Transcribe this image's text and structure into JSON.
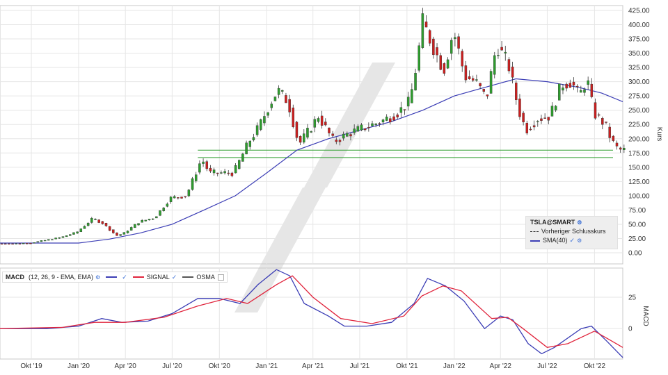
{
  "chart_data": [
    {
      "type": "candlestick",
      "title": "",
      "ylabel": "Kurs",
      "ylim": [
        0,
        425
      ],
      "y_ticks": [
        "425.00",
        "400.00",
        "375.00",
        "350.00",
        "325.00",
        "300.00",
        "275.00",
        "250.00",
        "225.00",
        "200.00",
        "175.00",
        "150.00",
        "125.00",
        "100.00",
        "75.00",
        "50.00",
        "25.00",
        "0.00"
      ],
      "x_ticks": [
        "Okt '19",
        "Jan '20",
        "Apr '20",
        "Jul '20",
        "Okt '20",
        "Jan '21",
        "Apr '21",
        "Jul '21",
        "Okt '21",
        "Jan '22",
        "Apr '22",
        "Jul '22",
        "Okt '22"
      ],
      "x_tick_dates": [
        "2019-10-01",
        "2020-01-01",
        "2020-04-01",
        "2020-07-01",
        "2020-10-01",
        "2021-01-01",
        "2021-04-01",
        "2021-07-01",
        "2021-10-01",
        "2022-01-01",
        "2022-04-01",
        "2022-07-01",
        "2022-10-01"
      ],
      "x_range": [
        "2019-08-01",
        "2022-11-25"
      ],
      "series": [
        {
          "name": "TSLA@SMART",
          "points": [
            {
              "date": "2019-08-01",
              "close": 16
            },
            {
              "date": "2019-09-01",
              "close": 16
            },
            {
              "date": "2019-10-01",
              "close": 17
            },
            {
              "date": "2019-11-01",
              "close": 22
            },
            {
              "date": "2019-12-01",
              "close": 27
            },
            {
              "date": "2020-01-01",
              "close": 36
            },
            {
              "date": "2020-02-01",
              "close": 60
            },
            {
              "date": "2020-02-20",
              "close": 52
            },
            {
              "date": "2020-03-18",
              "close": 30
            },
            {
              "date": "2020-04-01",
              "close": 34
            },
            {
              "date": "2020-05-01",
              "close": 54
            },
            {
              "date": "2020-06-01",
              "close": 62
            },
            {
              "date": "2020-07-01",
              "close": 96
            },
            {
              "date": "2020-08-01",
              "close": 100
            },
            {
              "date": "2020-08-31",
              "close": 165
            },
            {
              "date": "2020-09-15",
              "close": 140
            },
            {
              "date": "2020-10-01",
              "close": 140
            },
            {
              "date": "2020-11-01",
              "close": 140
            },
            {
              "date": "2020-12-01",
              "close": 195
            },
            {
              "date": "2020-12-20",
              "close": 220
            },
            {
              "date": "2021-01-10",
              "close": 260
            },
            {
              "date": "2021-01-26",
              "close": 285
            },
            {
              "date": "2021-02-15",
              "close": 265
            },
            {
              "date": "2021-03-08",
              "close": 190
            },
            {
              "date": "2021-04-01",
              "close": 220
            },
            {
              "date": "2021-04-15",
              "close": 240
            },
            {
              "date": "2021-05-15",
              "close": 195
            },
            {
              "date": "2021-06-15",
              "close": 210
            },
            {
              "date": "2021-07-15",
              "close": 220
            },
            {
              "date": "2021-08-15",
              "close": 230
            },
            {
              "date": "2021-09-15",
              "close": 245
            },
            {
              "date": "2021-10-10",
              "close": 265
            },
            {
              "date": "2021-10-25",
              "close": 340
            },
            {
              "date": "2021-11-04",
              "close": 405
            },
            {
              "date": "2021-11-25",
              "close": 360
            },
            {
              "date": "2021-12-15",
              "close": 320
            },
            {
              "date": "2022-01-03",
              "close": 390
            },
            {
              "date": "2022-01-25",
              "close": 310
            },
            {
              "date": "2022-02-15",
              "close": 300
            },
            {
              "date": "2022-03-08",
              "close": 270
            },
            {
              "date": "2022-03-28",
              "close": 365
            },
            {
              "date": "2022-04-20",
              "close": 330
            },
            {
              "date": "2022-05-10",
              "close": 250
            },
            {
              "date": "2022-05-24",
              "close": 215
            },
            {
              "date": "2022-06-15",
              "close": 235
            },
            {
              "date": "2022-07-10",
              "close": 240
            },
            {
              "date": "2022-08-01",
              "close": 295
            },
            {
              "date": "2022-08-20",
              "close": 300
            },
            {
              "date": "2022-09-05",
              "close": 275
            },
            {
              "date": "2022-09-20",
              "close": 305
            },
            {
              "date": "2022-10-03",
              "close": 245
            },
            {
              "date": "2022-10-25",
              "close": 225
            },
            {
              "date": "2022-11-05",
              "close": 200
            },
            {
              "date": "2022-11-15",
              "close": 185
            },
            {
              "date": "2022-11-25",
              "close": 180
            }
          ]
        },
        {
          "name": "SMA(40)",
          "color": "#3b3db5",
          "points": [
            {
              "date": "2019-08-01",
              "value": 17
            },
            {
              "date": "2020-01-01",
              "value": 17
            },
            {
              "date": "2020-03-01",
              "value": 24
            },
            {
              "date": "2020-05-01",
              "value": 35
            },
            {
              "date": "2020-07-01",
              "value": 50
            },
            {
              "date": "2020-09-01",
              "value": 75
            },
            {
              "date": "2020-11-01",
              "value": 100
            },
            {
              "date": "2021-01-01",
              "value": 140
            },
            {
              "date": "2021-03-01",
              "value": 180
            },
            {
              "date": "2021-05-01",
              "value": 200
            },
            {
              "date": "2021-07-01",
              "value": 215
            },
            {
              "date": "2021-09-01",
              "value": 230
            },
            {
              "date": "2021-11-01",
              "value": 250
            },
            {
              "date": "2022-01-01",
              "value": 275
            },
            {
              "date": "2022-03-01",
              "value": 290
            },
            {
              "date": "2022-05-01",
              "value": 305
            },
            {
              "date": "2022-07-01",
              "value": 300
            },
            {
              "date": "2022-09-01",
              "value": 290
            },
            {
              "date": "2022-10-15",
              "value": 280
            },
            {
              "date": "2022-11-25",
              "value": 265
            }
          ]
        }
      ],
      "horizontal_lines": [
        {
          "value": 180,
          "color": "#2e9e2e",
          "start": "2020-08-20"
        },
        {
          "value": 167,
          "color": "#2e9e2e",
          "start": "2020-08-20"
        }
      ],
      "legend": {
        "placement": "bottom-right",
        "title": "TSLA@SMART",
        "items": [
          "Vorheriger Schlusskurs",
          "SMA(40)"
        ]
      },
      "colors": {
        "up": "#2e9e2e",
        "down": "#cc1f1f",
        "sma": "#3b3db5"
      },
      "grid": true
    },
    {
      "type": "line",
      "title": "",
      "ylabel": "MACD",
      "ylim": [
        -22,
        46
      ],
      "y_ticks": [
        "25",
        "0"
      ],
      "settings_label": "(12, 26, 9 - EMA, EMA)",
      "series": [
        {
          "name": "MACD",
          "color": "#3b3db5",
          "points": [
            {
              "date": "2019-08-01",
              "value": 0
            },
            {
              "date": "2019-11-01",
              "value": 0
            },
            {
              "date": "2020-01-01",
              "value": 2
            },
            {
              "date": "2020-02-15",
              "value": 8
            },
            {
              "date": "2020-03-25",
              "value": 5
            },
            {
              "date": "2020-05-15",
              "value": 6
            },
            {
              "date": "2020-07-01",
              "value": 12
            },
            {
              "date": "2020-08-20",
              "value": 24
            },
            {
              "date": "2020-10-01",
              "value": 24
            },
            {
              "date": "2020-11-10",
              "value": 20
            },
            {
              "date": "2020-12-15",
              "value": 35
            },
            {
              "date": "2021-01-20",
              "value": 47
            },
            {
              "date": "2021-02-15",
              "value": 42
            },
            {
              "date": "2021-03-15",
              "value": 20
            },
            {
              "date": "2021-05-01",
              "value": 10
            },
            {
              "date": "2021-06-01",
              "value": 2
            },
            {
              "date": "2021-07-15",
              "value": 2
            },
            {
              "date": "2021-09-01",
              "value": 5
            },
            {
              "date": "2021-10-15",
              "value": 20
            },
            {
              "date": "2021-11-10",
              "value": 40
            },
            {
              "date": "2021-12-15",
              "value": 34
            },
            {
              "date": "2022-01-20",
              "value": 22
            },
            {
              "date": "2022-03-01",
              "value": 0
            },
            {
              "date": "2022-04-01",
              "value": 10
            },
            {
              "date": "2022-04-25",
              "value": 7
            },
            {
              "date": "2022-05-25",
              "value": -12
            },
            {
              "date": "2022-06-20",
              "value": -20
            },
            {
              "date": "2022-07-15",
              "value": -15
            },
            {
              "date": "2022-09-05",
              "value": 0
            },
            {
              "date": "2022-09-25",
              "value": 2
            },
            {
              "date": "2022-10-25",
              "value": -10
            },
            {
              "date": "2022-11-25",
              "value": -23
            }
          ]
        },
        {
          "name": "SIGNAL",
          "color": "#e0243c",
          "points": [
            {
              "date": "2019-08-01",
              "value": 0
            },
            {
              "date": "2019-12-01",
              "value": 1
            },
            {
              "date": "2020-02-01",
              "value": 5
            },
            {
              "date": "2020-04-01",
              "value": 5
            },
            {
              "date": "2020-06-15",
              "value": 9
            },
            {
              "date": "2020-08-20",
              "value": 18
            },
            {
              "date": "2020-10-15",
              "value": 24
            },
            {
              "date": "2020-11-25",
              "value": 20
            },
            {
              "date": "2021-01-20",
              "value": 35
            },
            {
              "date": "2021-02-20",
              "value": 42
            },
            {
              "date": "2021-04-01",
              "value": 25
            },
            {
              "date": "2021-05-25",
              "value": 8
            },
            {
              "date": "2021-07-25",
              "value": 4
            },
            {
              "date": "2021-09-25",
              "value": 10
            },
            {
              "date": "2021-10-30",
              "value": 26
            },
            {
              "date": "2021-12-10",
              "value": 34
            },
            {
              "date": "2022-01-15",
              "value": 30
            },
            {
              "date": "2022-03-15",
              "value": 8
            },
            {
              "date": "2022-04-15",
              "value": 9
            },
            {
              "date": "2022-05-15",
              "value": 0
            },
            {
              "date": "2022-07-01",
              "value": -15
            },
            {
              "date": "2022-08-10",
              "value": -12
            },
            {
              "date": "2022-10-01",
              "value": -2
            },
            {
              "date": "2022-11-25",
              "value": -15
            }
          ]
        },
        {
          "name": "OSMA",
          "color": "#555555",
          "points": []
        }
      ],
      "legend": {
        "placement": "top-left",
        "items": [
          "MACD",
          "SIGNAL",
          "OSMA"
        ]
      },
      "grid": true
    }
  ]
}
